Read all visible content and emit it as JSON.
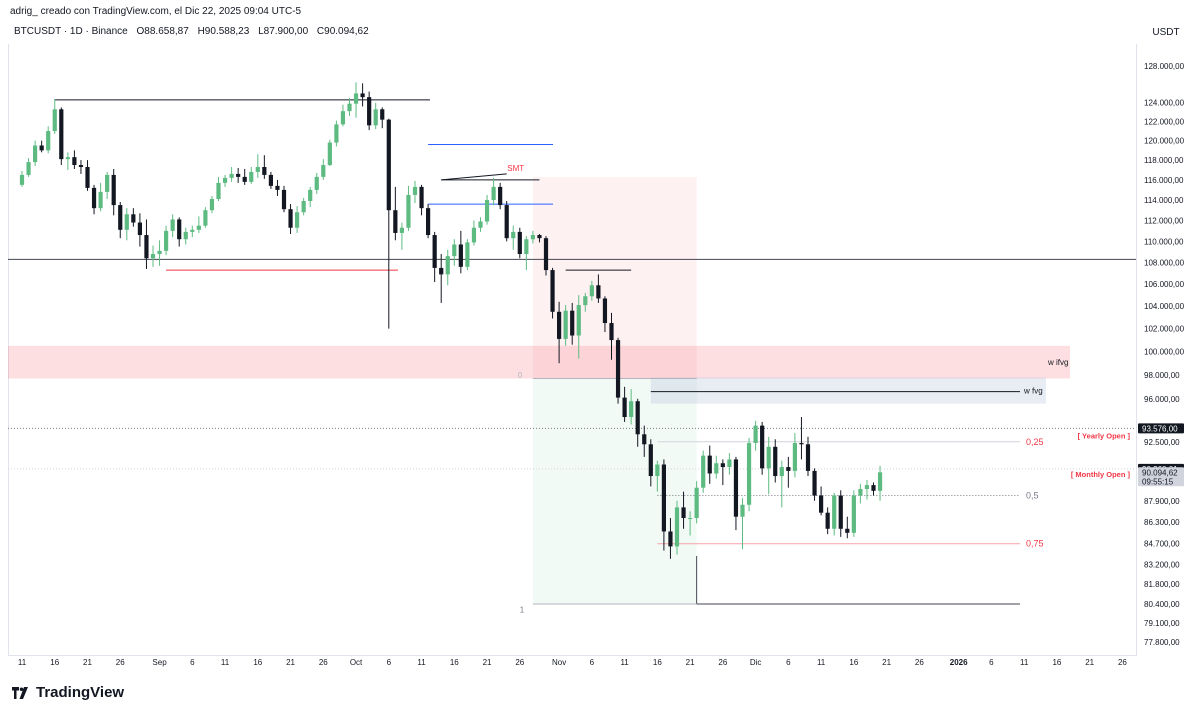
{
  "header": {
    "credit": "adrig_ creado con TradingView.com, el Dic 22, 2025 09:04 UTC-5",
    "symbol": "BTCUSDT · 1D · Binance",
    "open": "O88.658,87",
    "high": "H90.588,23",
    "low": "L87.900,00",
    "close": "C90.094,62",
    "currency": "USDT"
  },
  "brand": {
    "name": "TradingView",
    "icon": "tradingview-logo-icon"
  },
  "chart_data": {
    "type": "candlestick",
    "ylim": [
      77000,
      130000
    ],
    "y_ticks": [
      {
        "v": 128000,
        "label": "128.000,00"
      },
      {
        "v": 124000,
        "label": "124.000,00"
      },
      {
        "v": 122000,
        "label": "122.000,00"
      },
      {
        "v": 120000,
        "label": "120.000,00"
      },
      {
        "v": 118000,
        "label": "118.000,00"
      },
      {
        "v": 116000,
        "label": "116.000,00"
      },
      {
        "v": 114000,
        "label": "114.000,00"
      },
      {
        "v": 112000,
        "label": "112.000,00"
      },
      {
        "v": 110000,
        "label": "110.000,00"
      },
      {
        "v": 108000,
        "label": "108.000,00"
      },
      {
        "v": 106000,
        "label": "106.000,00"
      },
      {
        "v": 104000,
        "label": "104.000,00"
      },
      {
        "v": 102000,
        "label": "102.000,00"
      },
      {
        "v": 100000,
        "label": "100.000,00"
      },
      {
        "v": 98000,
        "label": "98.000,00"
      },
      {
        "v": 96000,
        "label": "96.000,00"
      },
      {
        "v": 92500,
        "label": "92.500,00"
      },
      {
        "v": 87900,
        "label": "87.900,00"
      },
      {
        "v": 86300,
        "label": "86.300,00"
      },
      {
        "v": 84700,
        "label": "84.700,00"
      },
      {
        "v": 83200,
        "label": "83.200,00"
      },
      {
        "v": 81800,
        "label": "81.800,00"
      },
      {
        "v": 80400,
        "label": "80.400,00"
      },
      {
        "v": 79100,
        "label": "79.100,00"
      },
      {
        "v": 77800,
        "label": "77.800,00"
      }
    ],
    "price_badges": [
      {
        "v": 93576.0,
        "label": "93.576,00",
        "bg": "#131722",
        "color": "#ffffff"
      },
      {
        "v": 90360.01,
        "label": "90.360,01",
        "bg": "#131722",
        "color": "#ffffff"
      },
      {
        "v": 90094.62,
        "label": "90.094,62",
        "bg": "#d1d4dc",
        "color": "#131722",
        "sub": "09:55:15"
      }
    ],
    "x_ticks": [
      {
        "d": 0,
        "label": "11"
      },
      {
        "d": 5,
        "label": "16"
      },
      {
        "d": 10,
        "label": "21"
      },
      {
        "d": 15,
        "label": "26"
      },
      {
        "d": 21,
        "label": "Sep"
      },
      {
        "d": 26,
        "label": "6"
      },
      {
        "d": 31,
        "label": "11"
      },
      {
        "d": 36,
        "label": "16"
      },
      {
        "d": 41,
        "label": "21"
      },
      {
        "d": 46,
        "label": "26"
      },
      {
        "d": 51,
        "label": "Oct"
      },
      {
        "d": 56,
        "label": "6"
      },
      {
        "d": 61,
        "label": "11"
      },
      {
        "d": 66,
        "label": "16"
      },
      {
        "d": 71,
        "label": "21"
      },
      {
        "d": 76,
        "label": "26"
      },
      {
        "d": 82,
        "label": "Nov"
      },
      {
        "d": 87,
        "label": "6"
      },
      {
        "d": 92,
        "label": "11"
      },
      {
        "d": 97,
        "label": "16"
      },
      {
        "d": 102,
        "label": "21"
      },
      {
        "d": 107,
        "label": "26"
      },
      {
        "d": 112,
        "label": "Dic"
      },
      {
        "d": 117,
        "label": "6"
      },
      {
        "d": 122,
        "label": "11"
      },
      {
        "d": 127,
        "label": "16"
      },
      {
        "d": 132,
        "label": "21"
      },
      {
        "d": 137,
        "label": "26"
      },
      {
        "d": 143,
        "label": "2026",
        "bold": true
      },
      {
        "d": 148,
        "label": "6"
      },
      {
        "d": 153,
        "label": "11"
      },
      {
        "d": 158,
        "label": "16"
      },
      {
        "d": 163,
        "label": "21"
      },
      {
        "d": 168,
        "label": "26"
      }
    ],
    "candles": [
      [
        115500,
        116900,
        115300,
        116500
      ],
      [
        116500,
        118200,
        116300,
        117800
      ],
      [
        117800,
        120000,
        117400,
        119500
      ],
      [
        119500,
        120000,
        118800,
        119000
      ],
      [
        119000,
        121500,
        118700,
        121000
      ],
      [
        121000,
        124400,
        120700,
        123300
      ],
      [
        123300,
        123500,
        117500,
        118100
      ],
      [
        118100,
        118800,
        117000,
        118300
      ],
      [
        118300,
        119000,
        117100,
        117500
      ],
      [
        117500,
        118000,
        116600,
        117300
      ],
      [
        117300,
        118000,
        114900,
        115200
      ],
      [
        115200,
        115500,
        112600,
        113200
      ],
      [
        113200,
        115700,
        112900,
        114800
      ],
      [
        114800,
        116800,
        114100,
        116500
      ],
      [
        116500,
        117100,
        112500,
        113500
      ],
      [
        113500,
        113800,
        110300,
        111100
      ],
      [
        111100,
        113200,
        110100,
        112600
      ],
      [
        112600,
        113200,
        111400,
        111800
      ],
      [
        111800,
        112700,
        109500,
        110600
      ],
      [
        110600,
        112100,
        107400,
        108400
      ],
      [
        108400,
        109600,
        107600,
        108800
      ],
      [
        108800,
        110100,
        107700,
        109100
      ],
      [
        109100,
        111500,
        108700,
        111000
      ],
      [
        111000,
        112600,
        110400,
        112100
      ],
      [
        112100,
        112300,
        109500,
        110200
      ],
      [
        110200,
        111300,
        109700,
        110900
      ],
      [
        110900,
        111500,
        110400,
        111100
      ],
      [
        111100,
        112400,
        110800,
        111500
      ],
      [
        111500,
        113300,
        111300,
        113000
      ],
      [
        113000,
        114400,
        112700,
        114100
      ],
      [
        114100,
        116300,
        113900,
        115700
      ],
      [
        115700,
        116500,
        115300,
        116200
      ],
      [
        116200,
        117300,
        115800,
        116600
      ],
      [
        116600,
        117200,
        115700,
        116300
      ],
      [
        116300,
        117100,
        115500,
        115800
      ],
      [
        115800,
        117300,
        115600,
        116800
      ],
      [
        116800,
        118600,
        116200,
        117300
      ],
      [
        117300,
        118500,
        116100,
        116500
      ],
      [
        116500,
        116800,
        115100,
        115400
      ],
      [
        115400,
        116000,
        114400,
        115000
      ],
      [
        115000,
        115400,
        112800,
        113100
      ],
      [
        113100,
        113600,
        110700,
        111300
      ],
      [
        111300,
        113400,
        110800,
        112800
      ],
      [
        112800,
        114200,
        112500,
        113900
      ],
      [
        113900,
        115300,
        113300,
        115000
      ],
      [
        115000,
        116700,
        114600,
        116300
      ],
      [
        116300,
        118100,
        116000,
        117500
      ],
      [
        117500,
        120100,
        117400,
        119800
      ],
      [
        119800,
        122100,
        119400,
        121700
      ],
      [
        121700,
        123800,
        121500,
        123100
      ],
      [
        123100,
        124500,
        122600,
        123900
      ],
      [
        123900,
        126200,
        122400,
        125000
      ],
      [
        125000,
        126100,
        123600,
        124600
      ],
      [
        124600,
        125200,
        121100,
        121600
      ],
      [
        121600,
        124000,
        121200,
        123300
      ],
      [
        123300,
        123500,
        121300,
        122200
      ],
      [
        122200,
        122300,
        102000,
        113000
      ],
      [
        113000,
        115300,
        110100,
        110800
      ],
      [
        110800,
        111800,
        109200,
        111300
      ],
      [
        111300,
        115400,
        111000,
        114500
      ],
      [
        114500,
        115900,
        113700,
        115300
      ],
      [
        115300,
        115500,
        112500,
        113200
      ],
      [
        113200,
        113600,
        110300,
        110600
      ],
      [
        110600,
        110900,
        106200,
        107500
      ],
      [
        107500,
        108800,
        104300,
        106900
      ],
      [
        106900,
        109200,
        105900,
        108600
      ],
      [
        108600,
        110200,
        107700,
        109700
      ],
      [
        109700,
        111000,
        107000,
        107600
      ],
      [
        107600,
        110200,
        107300,
        109900
      ],
      [
        109900,
        112000,
        109600,
        111300
      ],
      [
        111300,
        112300,
        110900,
        111900
      ],
      [
        111900,
        114500,
        111600,
        114000
      ],
      [
        114000,
        116200,
        113500,
        115300
      ],
      [
        115300,
        115700,
        113100,
        113500
      ],
      [
        113500,
        113900,
        110000,
        110300
      ],
      [
        110300,
        111500,
        109200,
        110900
      ],
      [
        110900,
        111300,
        108400,
        108800
      ],
      [
        108800,
        110500,
        107300,
        110200
      ],
      [
        110200,
        111000,
        109800,
        110600
      ],
      [
        110600,
        110700,
        109900,
        110300
      ],
      [
        110300,
        110500,
        106800,
        107300
      ],
      [
        107300,
        107500,
        102900,
        103500
      ],
      [
        103500,
        104400,
        99000,
        101100
      ],
      [
        101100,
        104100,
        100500,
        103600
      ],
      [
        103600,
        104300,
        100600,
        101400
      ],
      [
        101400,
        105000,
        99400,
        104100
      ],
      [
        104100,
        105200,
        103500,
        104900
      ],
      [
        104900,
        106300,
        104500,
        105900
      ],
      [
        105900,
        106900,
        104300,
        104700
      ],
      [
        104700,
        104900,
        101700,
        102500
      ],
      [
        102500,
        103400,
        99300,
        101000
      ],
      [
        101000,
        101200,
        95600,
        96100
      ],
      [
        96100,
        97000,
        94100,
        94500
      ],
      [
        94500,
        96800,
        93900,
        95800
      ],
      [
        95800,
        96000,
        92100,
        93100
      ],
      [
        93100,
        93800,
        91300,
        92300
      ],
      [
        92300,
        92700,
        89000,
        89800
      ],
      [
        89800,
        91000,
        88600,
        90700
      ],
      [
        90700,
        91100,
        84200,
        85600
      ],
      [
        85600,
        86600,
        83600,
        84500
      ],
      [
        84500,
        87900,
        83900,
        87400
      ],
      [
        87400,
        88600,
        85800,
        86600
      ],
      [
        86600,
        87100,
        85300,
        86600
      ],
      [
        86600,
        89400,
        86200,
        88900
      ],
      [
        88900,
        91800,
        88500,
        91400
      ],
      [
        91400,
        92200,
        89200,
        90000
      ],
      [
        90000,
        91400,
        89600,
        90800
      ],
      [
        90800,
        91100,
        89100,
        90500
      ],
      [
        90500,
        91600,
        89900,
        91100
      ],
      [
        91100,
        91300,
        85700,
        86700
      ],
      [
        86700,
        88100,
        84300,
        87600
      ],
      [
        87600,
        92800,
        87100,
        92400
      ],
      [
        92400,
        94200,
        91800,
        93800
      ],
      [
        93800,
        94100,
        89900,
        90400
      ],
      [
        90400,
        92900,
        88400,
        92100
      ],
      [
        92100,
        92700,
        89300,
        89800
      ],
      [
        89800,
        91000,
        87400,
        90500
      ],
      [
        90500,
        91300,
        88900,
        90200
      ],
      [
        90200,
        93200,
        89700,
        92400
      ],
      [
        92400,
        94500,
        91100,
        92300
      ],
      [
        92300,
        92900,
        89800,
        90200
      ],
      [
        90200,
        90400,
        87900,
        88300
      ],
      [
        88300,
        89000,
        86800,
        87000
      ],
      [
        87000,
        87400,
        85400,
        85800
      ],
      [
        85800,
        88500,
        85300,
        88300
      ],
      [
        88300,
        88700,
        85200,
        85800
      ],
      [
        85800,
        86700,
        85100,
        85500
      ],
      [
        85500,
        88700,
        85200,
        88300
      ],
      [
        88300,
        89200,
        87700,
        88800
      ],
      [
        88800,
        89500,
        88000,
        89100
      ],
      [
        89100,
        89300,
        88300,
        88660
      ],
      [
        88660,
        90590,
        87900,
        90090
      ]
    ]
  },
  "annotations": {
    "smt_label": "SMT",
    "wifvg_label": "w ifvg",
    "wfvg_label": "w fvg",
    "fib_025": "0,25",
    "fib_05": "0,5",
    "fib_075": "0,75",
    "fib_1": "1",
    "fib_0": "0",
    "yearly_open": "[ Yearly Open ]",
    "monthly_open": "[ Monthly Open ]",
    "bear_color": "#131722",
    "bull_color": "#5dbb82",
    "red_color": "#f23645",
    "blue_color": "#2962ff"
  }
}
